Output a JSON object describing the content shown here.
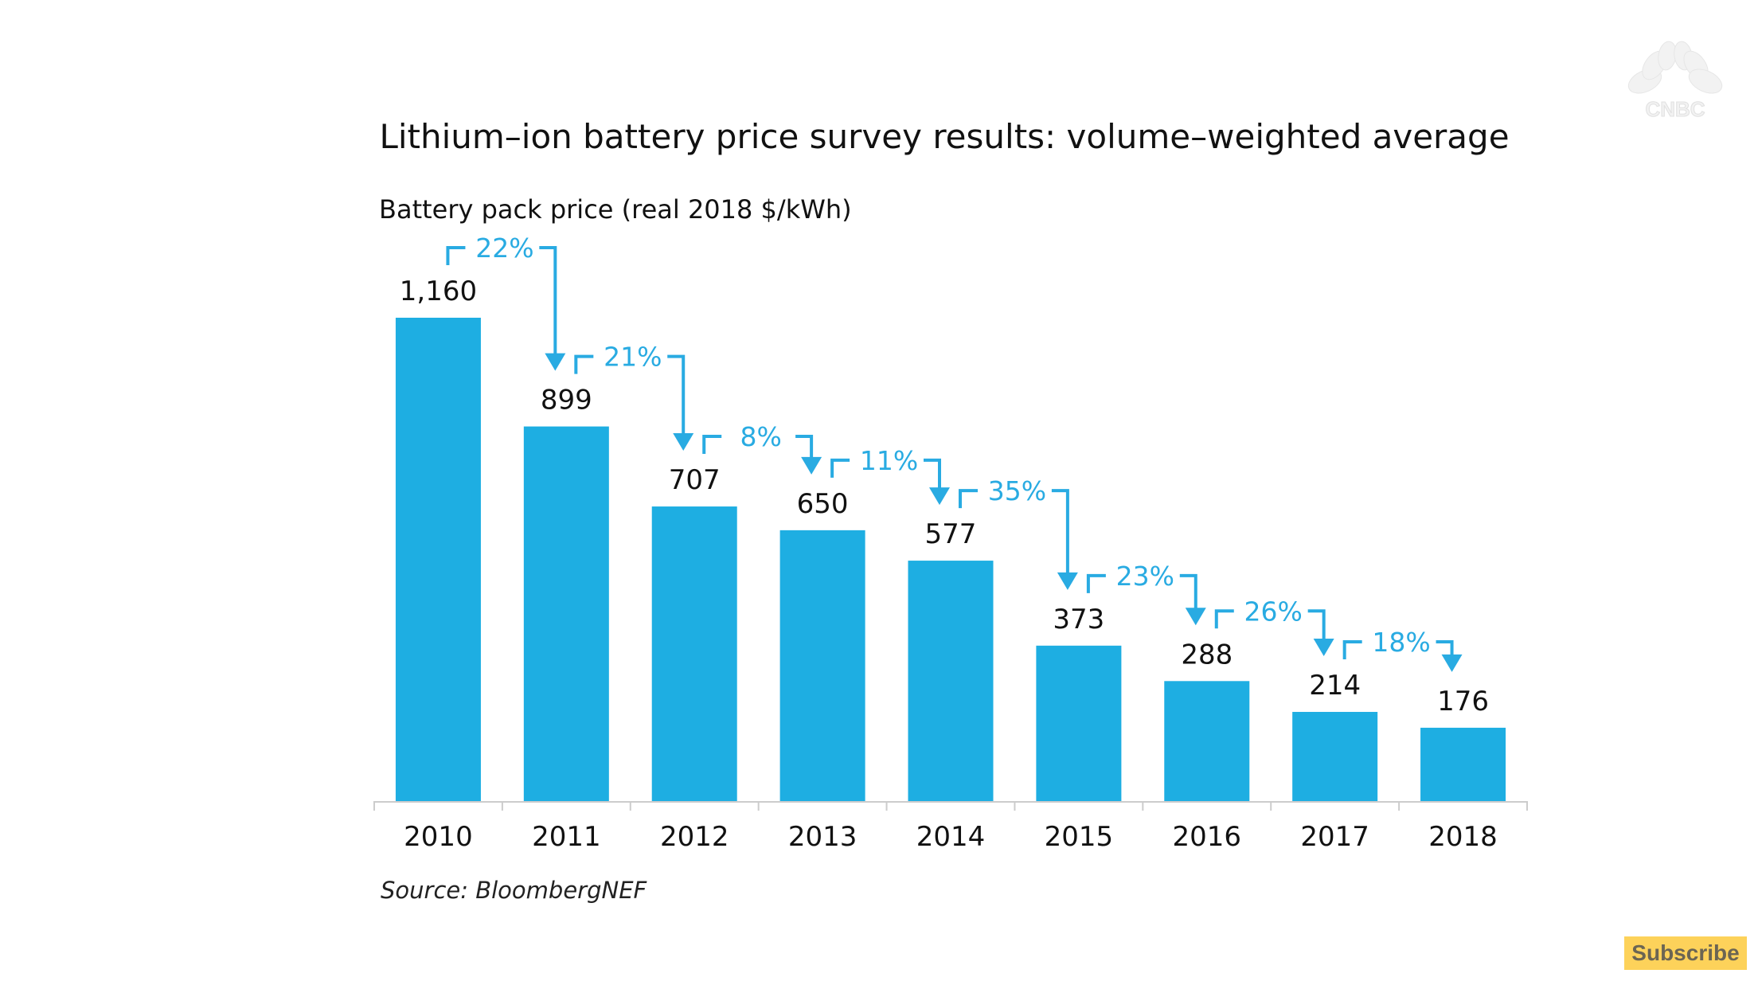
{
  "overlay": {
    "logo_text": "CNBC",
    "logo_icon": "peacock-icon",
    "subscribe_label": "Subscribe"
  },
  "chart_data": {
    "type": "bar",
    "title": "Lithium–ion battery price survey results: volume–weighted average",
    "ylabel": "Battery pack price (real 2018 $/kWh)",
    "xlabel": "",
    "categories": [
      "2010",
      "2011",
      "2012",
      "2013",
      "2014",
      "2015",
      "2016",
      "2017",
      "2018"
    ],
    "values": [
      1160,
      899,
      707,
      650,
      577,
      373,
      288,
      214,
      176
    ],
    "value_labels": [
      "1,160",
      "899",
      "707",
      "650",
      "577",
      "373",
      "288",
      "214",
      "176"
    ],
    "annotations": [
      {
        "from": "2010",
        "to": "2011",
        "label": "22%"
      },
      {
        "from": "2011",
        "to": "2012",
        "label": "21%"
      },
      {
        "from": "2012",
        "to": "2013",
        "label": "8%"
      },
      {
        "from": "2013",
        "to": "2014",
        "label": "11%"
      },
      {
        "from": "2014",
        "to": "2015",
        "label": "35%"
      },
      {
        "from": "2015",
        "to": "2016",
        "label": "23%"
      },
      {
        "from": "2016",
        "to": "2017",
        "label": "26%"
      },
      {
        "from": "2017",
        "to": "2018",
        "label": "18%"
      }
    ],
    "ylim": [
      0,
      1160
    ],
    "grid": false,
    "legend": "none",
    "source": "Source: BloombergNEF",
    "colors": {
      "bar": "#1eaee2",
      "annotation": "#29abe2",
      "text": "#111111",
      "axis": "#cccccc"
    }
  }
}
